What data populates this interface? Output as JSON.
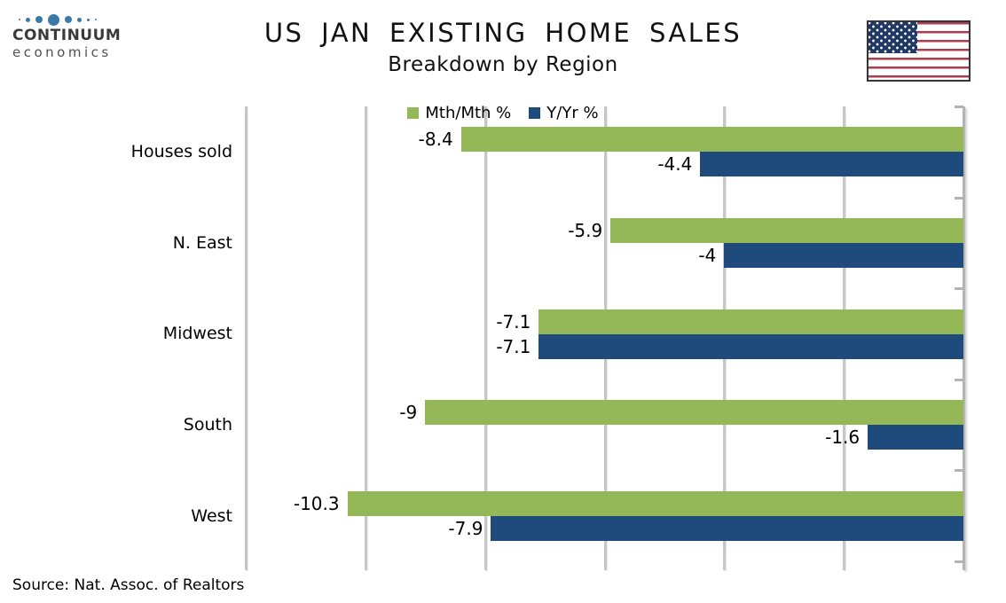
{
  "header": {
    "logo": {
      "line1": "CONTINUUM",
      "line2": "economics",
      "dots_icon": "continuum-dots-logo",
      "dot_color": "#3A79A8"
    },
    "flag_icon": "us-flag"
  },
  "chart_data": {
    "type": "bar",
    "orientation": "horizontal",
    "title": "US JAN EXISTING HOME SALES",
    "subtitle": "Breakdown by Region",
    "categories": [
      "Houses sold",
      "N. East",
      "Midwest",
      "South",
      "West"
    ],
    "series": [
      {
        "name": "Mth/Mth %",
        "color": "#94B857",
        "values": [
          -8.4,
          -5.9,
          -7.1,
          -9,
          -10.3
        ],
        "labels": [
          "-8.4",
          "-5.9",
          "-7.1",
          "-9",
          "-10.3"
        ]
      },
      {
        "name": "Y/Yr %",
        "color": "#1F4A7C",
        "values": [
          -4.4,
          -4,
          -7.1,
          -1.6,
          -7.9
        ],
        "labels": [
          "-4.4",
          "-4",
          "-7.1",
          "-1.6",
          "-7.9"
        ]
      }
    ],
    "xlim": [
      -12,
      0
    ],
    "gridline_step": 2,
    "grid": true,
    "legend_position": "top",
    "value_axis_tick_labels_visible": false,
    "gridline_color": "#C6C6C6",
    "zero_axis_color": "#B4B4B4"
  },
  "footer": {
    "source": "Source: Nat. Assoc. of Realtors"
  }
}
